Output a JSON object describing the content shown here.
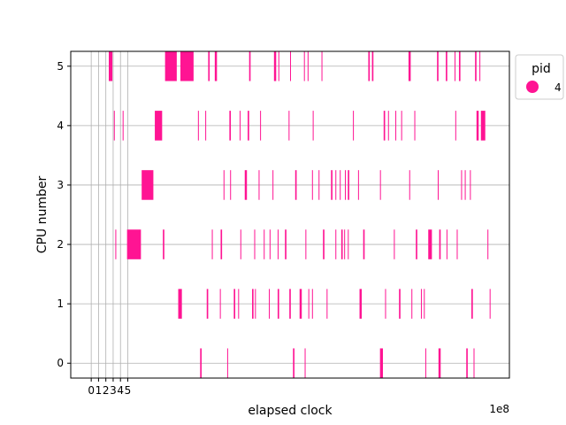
{
  "chart_data": {
    "type": "timeline",
    "xlabel": "elapsed clock",
    "ylabel": "CPU number",
    "x_offset_text": "1e8",
    "xlim": [
      -2.8,
      57.2
    ],
    "ylim": [
      -0.25,
      5.25
    ],
    "x_tick_values": [
      0,
      1,
      2,
      3,
      4,
      5
    ],
    "x_tick_labels": [
      "0",
      "1",
      "2",
      "3",
      "4",
      "5"
    ],
    "y_tick_values": [
      0,
      1,
      2,
      3,
      4,
      5
    ],
    "y_tick_labels": [
      "0",
      "1",
      "2",
      "3",
      "4",
      "5"
    ],
    "x_unit_multiplier": 100000000,
    "grid": true,
    "bar_height": 0.5,
    "legend": {
      "title": "pid",
      "entries": [
        {
          "label": "4",
          "color": "#ff1493"
        }
      ],
      "placement": "outside-top-right"
    },
    "series": [
      {
        "name": "4",
        "color": "#ff1493",
        "cpus": [
          {
            "cpu": 0,
            "intervals": [
              [
                14.9,
                0.2
              ],
              [
                18.6,
                0.1
              ],
              [
                27.6,
                0.2
              ],
              [
                29.2,
                0.1
              ],
              [
                39.5,
                0.4
              ],
              [
                45.7,
                0.1
              ],
              [
                47.5,
                0.3
              ],
              [
                51.3,
                0.2
              ],
              [
                52.3,
                0.1
              ]
            ]
          },
          {
            "cpu": 1,
            "intervals": [
              [
                11.9,
                0.5
              ],
              [
                15.8,
                0.2
              ],
              [
                17.6,
                0.1
              ],
              [
                19.5,
                0.2
              ],
              [
                20.1,
                0.1
              ],
              [
                22.0,
                0.2
              ],
              [
                22.4,
                0.1
              ],
              [
                24.3,
                0.1
              ],
              [
                25.5,
                0.2
              ],
              [
                27.1,
                0.2
              ],
              [
                28.5,
                0.3
              ],
              [
                29.7,
                0.1
              ],
              [
                30.2,
                0.1
              ],
              [
                32.2,
                0.1
              ],
              [
                36.7,
                0.3
              ],
              [
                40.2,
                0.1
              ],
              [
                42.1,
                0.2
              ],
              [
                43.8,
                0.1
              ],
              [
                45.1,
                0.1
              ],
              [
                45.5,
                0.1
              ],
              [
                52.0,
                0.2
              ],
              [
                54.5,
                0.1
              ]
            ]
          },
          {
            "cpu": 2,
            "intervals": [
              [
                3.3,
                0.1
              ],
              [
                4.9,
                1.9
              ],
              [
                9.8,
                0.2
              ],
              [
                16.5,
                0.1
              ],
              [
                17.7,
                0.2
              ],
              [
                20.4,
                0.1
              ],
              [
                22.3,
                0.1
              ],
              [
                23.6,
                0.1
              ],
              [
                24.4,
                0.1
              ],
              [
                25.5,
                0.1
              ],
              [
                26.5,
                0.2
              ],
              [
                29.3,
                0.1
              ],
              [
                31.7,
                0.2
              ],
              [
                33.4,
                0.1
              ],
              [
                34.2,
                0.2
              ],
              [
                34.6,
                0.1
              ],
              [
                35.1,
                0.1
              ],
              [
                37.2,
                0.2
              ],
              [
                41.4,
                0.1
              ],
              [
                44.4,
                0.2
              ],
              [
                46.1,
                0.5
              ],
              [
                47.6,
                0.2
              ],
              [
                48.6,
                0.1
              ],
              [
                50.0,
                0.1
              ],
              [
                54.2,
                0.1
              ]
            ]
          },
          {
            "cpu": 3,
            "intervals": [
              [
                6.9,
                1.6
              ],
              [
                18.1,
                0.1
              ],
              [
                19.0,
                0.1
              ],
              [
                21.0,
                0.3
              ],
              [
                22.9,
                0.1
              ],
              [
                24.8,
                0.1
              ],
              [
                27.9,
                0.2
              ],
              [
                30.2,
                0.1
              ],
              [
                31.1,
                0.1
              ],
              [
                32.8,
                0.2
              ],
              [
                33.4,
                0.1
              ],
              [
                34.0,
                0.1
              ],
              [
                34.7,
                0.1
              ],
              [
                35.1,
                0.2
              ],
              [
                36.5,
                0.1
              ],
              [
                39.5,
                0.1
              ],
              [
                43.5,
                0.1
              ],
              [
                47.4,
                0.1
              ],
              [
                50.6,
                0.1
              ],
              [
                51.1,
                0.1
              ],
              [
                51.8,
                0.1
              ]
            ]
          },
          {
            "cpu": 4,
            "intervals": [
              [
                3.1,
                0.1
              ],
              [
                4.3,
                0.1
              ],
              [
                8.7,
                1.0
              ],
              [
                14.6,
                0.1
              ],
              [
                15.6,
                0.1
              ],
              [
                18.9,
                0.2
              ],
              [
                20.3,
                0.1
              ],
              [
                21.4,
                0.2
              ],
              [
                23.1,
                0.1
              ],
              [
                27.0,
                0.1
              ],
              [
                30.3,
                0.1
              ],
              [
                35.8,
                0.1
              ],
              [
                40.0,
                0.2
              ],
              [
                40.6,
                0.1
              ],
              [
                41.6,
                0.1
              ],
              [
                42.4,
                0.1
              ],
              [
                44.2,
                0.1
              ],
              [
                49.8,
                0.1
              ],
              [
                52.7,
                0.3
              ],
              [
                53.3,
                0.6
              ]
            ]
          },
          {
            "cpu": 5,
            "intervals": [
              [
                2.4,
                0.5
              ],
              [
                10.1,
                1.6
              ],
              [
                12.2,
                1.8
              ],
              [
                16.0,
                0.2
              ],
              [
                16.9,
                0.3
              ],
              [
                21.6,
                0.2
              ],
              [
                25.0,
                0.3
              ],
              [
                25.6,
                0.1
              ],
              [
                27.2,
                0.1
              ],
              [
                29.1,
                0.1
              ],
              [
                29.6,
                0.1
              ],
              [
                31.5,
                0.1
              ],
              [
                37.9,
                0.2
              ],
              [
                38.4,
                0.2
              ],
              [
                43.4,
                0.3
              ],
              [
                47.3,
                0.2
              ],
              [
                48.5,
                0.2
              ],
              [
                49.7,
                0.1
              ],
              [
                50.3,
                0.2
              ],
              [
                52.5,
                0.2
              ],
              [
                53.1,
                0.1
              ]
            ]
          }
        ]
      }
    ]
  }
}
